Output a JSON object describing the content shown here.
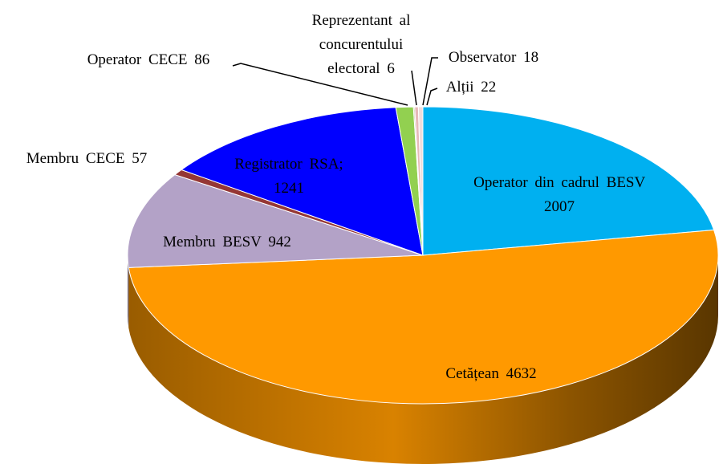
{
  "chart_data": {
    "type": "pie3d",
    "categories": [
      "Operator din cadrul BESV",
      "Cetățean",
      "Membru BESV",
      "Membru CECE",
      "Registrator RSA;",
      "Operator CECE",
      "Reprezentant al concurentului electoral",
      "Observator",
      "Alții"
    ],
    "values": [
      2007,
      4632,
      942,
      57,
      1241,
      86,
      6,
      18,
      22
    ],
    "colors": [
      "#00b0f0",
      "#ff9900",
      "#b3a2c7",
      "#953735",
      "#0000ff",
      "#92d050",
      "#c4bd97",
      "#e6b9b8",
      "#f2dcdb"
    ]
  }
}
